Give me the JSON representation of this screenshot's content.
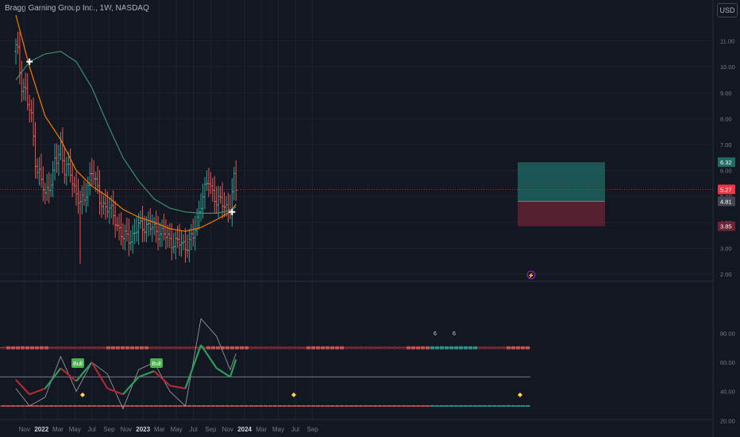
{
  "header": {
    "title": "Bragg Gaming Group Inc., 1W, NASDAQ",
    "currency": "USD"
  },
  "colors": {
    "background": "#131722",
    "up": "#26a69a",
    "down": "#ef5350",
    "ma_orange": "#f57c00",
    "ma_green": "#3c8f6a",
    "target_zone": "#1f6b66",
    "stop_zone": "#6b2431",
    "price_tag": "#f23645"
  },
  "chart_data": [
    {
      "type": "line",
      "name": "price-panel",
      "x_tick_labels": [
        "Nov",
        "2022",
        "Mar",
        "May",
        "Jul",
        "Sep",
        "Nov",
        "2023",
        "Mar",
        "May",
        "Jul",
        "Sep",
        "Nov",
        "2024",
        "Mar",
        "May",
        "Jul",
        "Sep"
      ],
      "y_tick_labels": [
        "11.00",
        "10.00",
        "9.00",
        "8.00",
        "7.00",
        "6.00",
        "5.00",
        "4.00",
        "3.00",
        "2.00"
      ],
      "ylim": [
        1.5,
        12.0
      ],
      "price_labels": [
        {
          "value": "6.32",
          "kind": "target"
        },
        {
          "value": "5.27",
          "kind": "last"
        },
        {
          "value": "4.81",
          "kind": "entry"
        },
        {
          "value": "3.85",
          "kind": "stop"
        }
      ],
      "series": [
        {
          "name": "",
          "style": "ohlc-bars",
          "x": [
            "2021-10-01",
            "2021-10-22",
            "2021-11-19",
            "2021-12-17",
            "2022-01-14",
            "2022-02-11",
            "2022-03-11",
            "2022-04-08",
            "2022-05-06",
            "2022-06-03",
            "2022-07-01",
            "2022-07-29",
            "2022-08-26",
            "2022-09-23",
            "2022-10-21",
            "2022-11-18",
            "2022-12-16",
            "2023-01-13",
            "2023-02-10",
            "2023-03-10",
            "2023-04-07",
            "2023-05-05",
            "2023-06-02",
            "2023-06-30",
            "2023-07-28",
            "2023-08-25",
            "2023-09-22",
            "2023-10-20",
            "2023-11-10",
            "2023-11-24",
            "2023-12-01"
          ],
          "close": [
            10.6,
            9.6,
            8.3,
            6.2,
            5.0,
            5.9,
            6.8,
            6.0,
            5.1,
            4.7,
            6.2,
            4.8,
            4.6,
            4.1,
            3.4,
            3.4,
            3.8,
            3.9,
            3.7,
            3.6,
            3.3,
            3.2,
            3.1,
            3.4,
            4.8,
            5.6,
            4.8,
            4.7,
            4.5,
            5.6,
            5.27
          ]
        },
        {
          "name": "",
          "style": "moving-average-orange",
          "x": [
            "2021-10-01",
            "2021-11-19",
            "2022-01-14",
            "2022-03-11",
            "2022-05-06",
            "2022-07-01",
            "2022-08-26",
            "2022-10-21",
            "2022-12-16",
            "2023-02-10",
            "2023-04-07",
            "2023-06-02",
            "2023-07-28",
            "2023-09-22",
            "2023-11-10",
            "2023-12-01"
          ],
          "values": [
            12.0,
            10.0,
            8.1,
            7.2,
            6.0,
            5.4,
            5.0,
            4.5,
            4.2,
            4.0,
            3.75,
            3.65,
            3.8,
            4.1,
            4.4,
            4.7
          ]
        },
        {
          "name": "",
          "style": "moving-average-green",
          "x": [
            "2021-10-01",
            "2021-11-19",
            "2022-01-14",
            "2022-03-11",
            "2022-05-06",
            "2022-07-01",
            "2022-08-26",
            "2022-10-21",
            "2022-12-16",
            "2023-02-10",
            "2023-04-07",
            "2023-06-02",
            "2023-07-28",
            "2023-09-22",
            "2023-11-10",
            "2023-12-01"
          ],
          "values": [
            9.5,
            10.2,
            10.5,
            10.6,
            10.2,
            9.2,
            7.8,
            6.5,
            5.6,
            4.9,
            4.55,
            4.4,
            4.35,
            4.35,
            4.45,
            4.6
          ]
        }
      ],
      "annotations": [
        {
          "kind": "cross-marker",
          "x": "2021-11-19",
          "y": 10.2
        },
        {
          "kind": "cross-marker",
          "x": "2023-11-17",
          "y": 4.4
        },
        {
          "kind": "position-box",
          "entry": 4.81,
          "target": 6.32,
          "stop": 3.85
        }
      ]
    },
    {
      "type": "line",
      "name": "oscillator-panel",
      "y_tick_labels": [
        "80.00",
        "60.00",
        "40.00",
        "20.00"
      ],
      "ylim": [
        10,
        95
      ],
      "levels": [
        70,
        50,
        30
      ],
      "labels": [
        "Bull",
        "Bull",
        "6",
        "6"
      ],
      "series": [
        {
          "name": "",
          "style": "thick-red-green",
          "x": [
            "2021-10-01",
            "2021-11-19",
            "2022-01-14",
            "2022-03-11",
            "2022-05-06",
            "2022-07-01",
            "2022-08-26",
            "2022-10-21",
            "2022-12-16",
            "2023-02-10",
            "2023-04-07",
            "2023-06-02",
            "2023-07-28",
            "2023-09-22",
            "2023-11-10",
            "2023-12-01"
          ],
          "values": [
            48,
            38,
            42,
            56,
            47,
            60,
            42,
            38,
            50,
            54,
            44,
            42,
            72,
            56,
            50,
            62
          ]
        },
        {
          "name": "",
          "style": "thin-grey",
          "x": [
            "2021-10-01",
            "2021-11-19",
            "2022-01-14",
            "2022-03-11",
            "2022-05-06",
            "2022-07-01",
            "2022-08-26",
            "2022-10-21",
            "2022-12-16",
            "2023-02-10",
            "2023-04-07",
            "2023-06-02",
            "2023-07-28",
            "2023-09-22",
            "2023-11-10",
            "2023-12-01"
          ],
          "values": [
            42,
            30,
            36,
            64,
            40,
            60,
            52,
            28,
            55,
            60,
            40,
            30,
            90,
            78,
            55,
            66
          ]
        }
      ]
    }
  ]
}
